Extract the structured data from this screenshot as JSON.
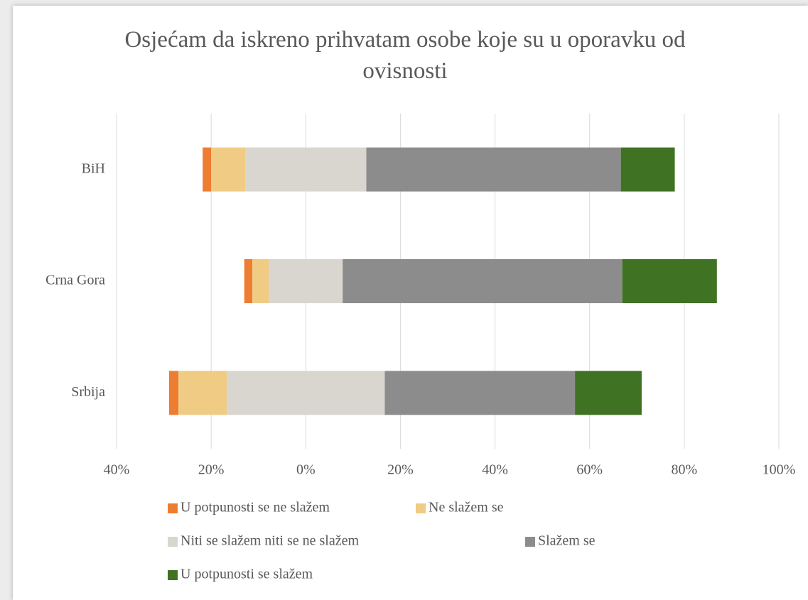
{
  "chart_data": {
    "type": "diverging_bar",
    "title": "Osjećam da iskreno prihvatam osobe koje su u oporavku od ovisnosti",
    "categories": [
      "BiH",
      "Crna Gora",
      "Srbija"
    ],
    "series": [
      {
        "name": "U potpunosti se ne slažem",
        "color": "#ed7d31",
        "values": [
          1.8,
          1.7,
          2.0
        ]
      },
      {
        "name": "Ne slažem se",
        "color": "#efcb84",
        "values": [
          7.2,
          3.5,
          10.2
        ]
      },
      {
        "name": "Niti se slažem niti se ne slažem",
        "color": "#d9d5cf",
        "values": [
          25.6,
          15.6,
          33.4
        ]
      },
      {
        "name": "Slažem se",
        "color": "#8c8c8c",
        "values": [
          53.8,
          59.1,
          40.2
        ]
      },
      {
        "name": "U potpunosti se slažem",
        "color": "#3f7222",
        "values": [
          11.4,
          20.0,
          14.1
        ]
      }
    ],
    "xlim": [
      -40,
      100
    ],
    "xticks": [
      {
        "value": -40,
        "label": "40%"
      },
      {
        "value": -20,
        "label": "20%"
      },
      {
        "value": 0,
        "label": "0%"
      },
      {
        "value": 20,
        "label": "20%"
      },
      {
        "value": 40,
        "label": "40%"
      },
      {
        "value": 60,
        "label": "60%"
      },
      {
        "value": 80,
        "label": "80%"
      },
      {
        "value": 100,
        "label": "100%"
      }
    ],
    "grid": true
  }
}
